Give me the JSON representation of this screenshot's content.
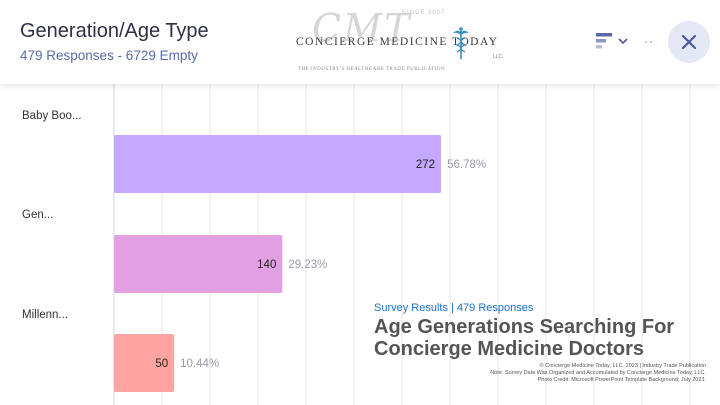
{
  "header": {
    "title": "Generation/Age Type",
    "subtitle": "479 Responses - 6729 Empty"
  },
  "logo": {
    "monogram": "CMT",
    "since": "SINCE 2007",
    "name": "CONCIERGE MEDICINE TODAY",
    "suffix": "LLC.",
    "tagline": "THE INDUSTRY'S HEALTHCARE TRADE PUBLICATION"
  },
  "toolbar": {
    "chart_type_icon": "bar-chart-icon",
    "dropdown_icon": "chevron-down-icon",
    "more_label": "··",
    "close_icon": "close-icon"
  },
  "colors": {
    "accent": "#5a6aa8",
    "series": [
      "#c5a8ff",
      "#e2a0e2",
      "#ffa3a3"
    ]
  },
  "chart_data": {
    "type": "bar",
    "orientation": "horizontal",
    "categories": [
      "Baby Boo...",
      "Gen...",
      "Millenn..."
    ],
    "values": [
      272,
      140,
      50
    ],
    "percent_labels": [
      "56.78%",
      "29.23%",
      "10.44%"
    ],
    "xlim": [
      0,
      479
    ],
    "grid": true,
    "title": "Generation/Age Type"
  },
  "overlay": {
    "kicker": "Survey Results | 479 Responses",
    "heading": "Age Generations Searching For Concierge Medicine Doctors",
    "notes": [
      "© Concierge Medicine Today, LLC.  2023 | Industry Trade Publication",
      "Note: Survey Data Was Organized and Accumulated by Concierge Medicine Today, LLC.",
      "Photo Credit: Microsoft PowerPoint Template Background; July 2023."
    ]
  }
}
